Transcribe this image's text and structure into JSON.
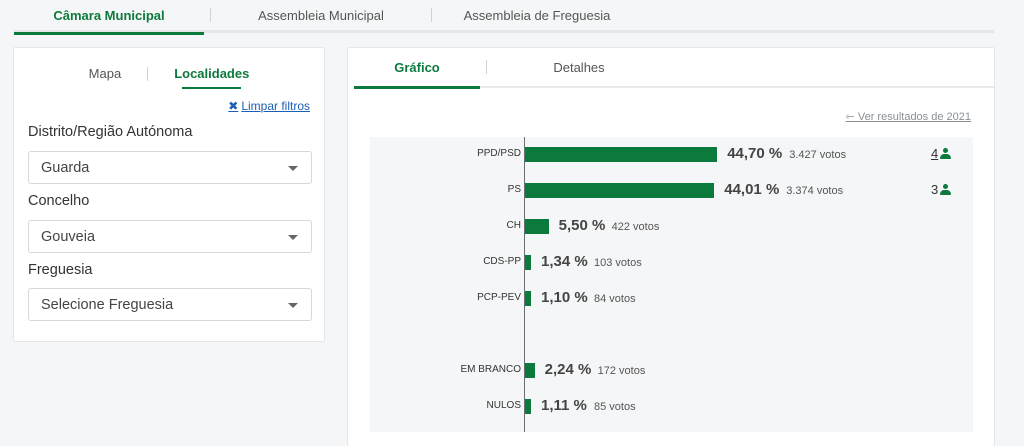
{
  "top_tabs": [
    "Câmara Municipal",
    "Assembleia Municipal",
    "Assembleia de Freguesia"
  ],
  "left": {
    "tabs": [
      "Mapa",
      "Localidades"
    ],
    "clear_filters": "Limpar filtros",
    "fields": [
      {
        "label": "Distrito/Região Autónoma",
        "value": "Guarda"
      },
      {
        "label": "Concelho",
        "value": "Gouveia"
      },
      {
        "label": "Freguesia",
        "value": "Selecione Freguesia"
      }
    ]
  },
  "right": {
    "tabs": [
      "Gráfico",
      "Detalhes"
    ],
    "prev_link": "Ver resultados de 2021"
  },
  "colors": {
    "accent": "#0c7a3d",
    "link": "#1a5fb4"
  },
  "chart_data": {
    "type": "bar",
    "orientation": "horizontal",
    "xlim": [
      0,
      100
    ],
    "rows": [
      {
        "party": "PPD/PSD",
        "percent": 44.7,
        "percent_label": "44,70 %",
        "votes_label": "3.427 votos",
        "seats": "4",
        "seats_link": true
      },
      {
        "party": "PS",
        "percent": 44.01,
        "percent_label": "44,01 %",
        "votes_label": "3.374 votos",
        "seats": "3",
        "seats_link": false
      },
      {
        "party": "CH",
        "percent": 5.5,
        "percent_label": "5,50 %",
        "votes_label": "422 votos"
      },
      {
        "party": "CDS-PP",
        "percent": 1.34,
        "percent_label": "1,34 %",
        "votes_label": "103 votos"
      },
      {
        "party": "PCP-PEV",
        "percent": 1.1,
        "percent_label": "1,10 %",
        "votes_label": "84 votos"
      },
      {
        "party": "EM BRANCO",
        "percent": 2.24,
        "percent_label": "2,24 %",
        "votes_label": "172 votos"
      },
      {
        "party": "NULOS",
        "percent": 1.11,
        "percent_label": "1,11 %",
        "votes_label": "85 votos"
      }
    ]
  }
}
